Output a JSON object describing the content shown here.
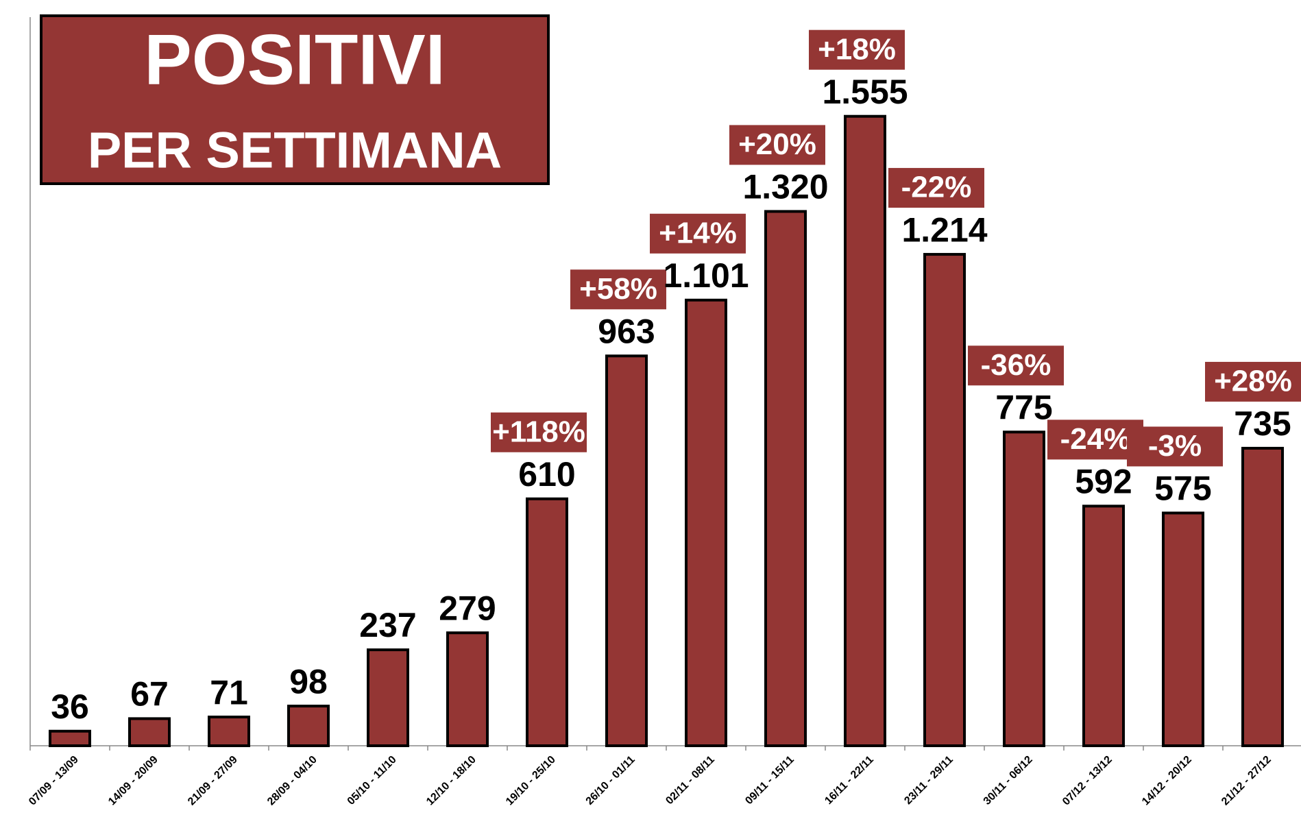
{
  "chart_data": {
    "type": "bar",
    "title": "POSITIVI",
    "subtitle": "PER SETTIMANA",
    "categories": [
      "07/09 - 13/09",
      "14/09 - 20/09",
      "21/09 - 27/09",
      "28/09 - 04/10",
      "05/10 - 11/10",
      "12/10 - 18/10",
      "19/10 - 25/10",
      "26/10 - 01/11",
      "02/11 - 08/11",
      "09/11 - 15/11",
      "16/11 - 22/11",
      "23/11 - 29/11",
      "30/11 - 06/12",
      "07/12 - 13/12",
      "14/12 - 20/12",
      "21/12 - 27/12"
    ],
    "values": [
      36,
      67,
      71,
      98,
      237,
      279,
      610,
      963,
      1101,
      1320,
      1555,
      1214,
      775,
      592,
      575,
      735
    ],
    "value_labels": [
      "36",
      "67",
      "71",
      "98",
      "237",
      "279",
      "610",
      "963",
      "1.101",
      "1.320",
      "1.555",
      "1.214",
      "775",
      "592",
      "575",
      "735"
    ],
    "annotations": [
      null,
      null,
      null,
      null,
      null,
      null,
      "+118%",
      "+58%",
      "+14%",
      "+20%",
      "+18%",
      "-22%",
      "-36%",
      "-24%",
      "-3%",
      "+28%"
    ],
    "color": "#943634",
    "ylim": [
      0,
      1800
    ]
  }
}
